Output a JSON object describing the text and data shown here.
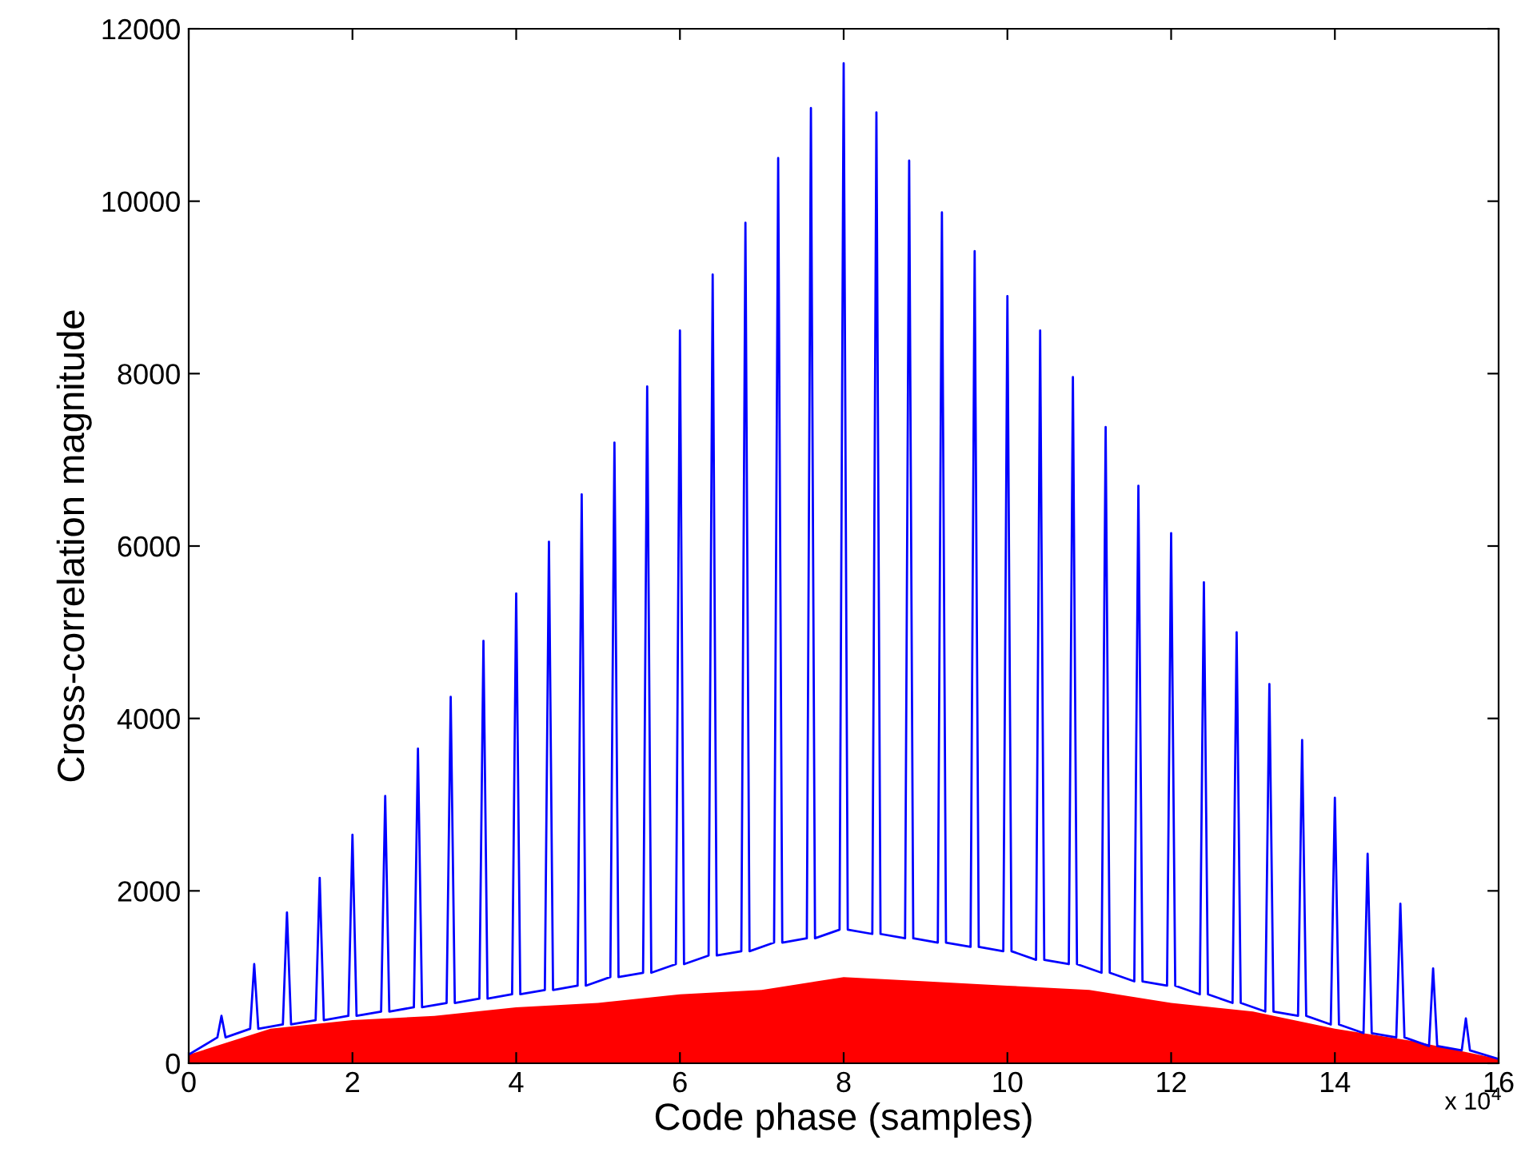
{
  "chart_data": {
    "type": "line",
    "xlabel": "Code phase (samples)",
    "ylabel": "Cross-correlation magnitude",
    "annotations": [
      "x 10$^{4}$"
    ],
    "xlim": [
      0,
      16
    ],
    "ylim": [
      0,
      12000
    ],
    "xticks": [
      0,
      2,
      4,
      6,
      8,
      10,
      12,
      14,
      16
    ],
    "yticks": [
      0,
      2000,
      4000,
      6000,
      8000,
      10000,
      12000
    ],
    "grid": false,
    "legend": false,
    "series": [
      {
        "color": "#0000ff",
        "x": [
          0,
          0.35,
          0.4,
          0.45,
          0.75,
          0.8,
          0.85,
          1.15,
          1.2,
          1.25,
          1.55,
          1.6,
          1.65,
          1.95,
          2.0,
          2.05,
          2.35,
          2.4,
          2.45,
          2.75,
          2.8,
          2.85,
          3.15,
          3.2,
          3.25,
          3.55,
          3.6,
          3.65,
          3.95,
          4.0,
          4.05,
          4.35,
          4.4,
          4.45,
          4.75,
          4.8,
          4.85,
          5.15,
          5.2,
          5.25,
          5.55,
          5.6,
          5.65,
          5.95,
          6.0,
          6.05,
          6.35,
          6.4,
          6.45,
          6.75,
          6.8,
          6.85,
          7.15,
          7.2,
          7.25,
          7.55,
          7.6,
          7.65,
          7.95,
          8.0,
          8.05,
          8.35,
          8.4,
          8.45,
          8.75,
          8.8,
          8.85,
          9.15,
          9.2,
          9.25,
          9.55,
          9.6,
          9.65,
          9.95,
          10.0,
          10.05,
          10.35,
          10.4,
          10.45,
          10.75,
          10.8,
          10.85,
          11.15,
          11.2,
          11.25,
          11.55,
          11.6,
          11.65,
          11.95,
          12.0,
          12.05,
          12.35,
          12.4,
          12.45,
          12.75,
          12.8,
          12.85,
          13.15,
          13.2,
          13.25,
          13.55,
          13.6,
          13.65,
          13.95,
          14.0,
          14.05,
          14.35,
          14.4,
          14.45,
          14.75,
          14.8,
          14.85,
          15.15,
          15.2,
          15.25,
          15.55,
          15.6,
          15.65,
          16
        ],
        "values": [
          100,
          300,
          550,
          300,
          400,
          1150,
          400,
          450,
          1750,
          450,
          500,
          2150,
          500,
          550,
          2650,
          550,
          600,
          3100,
          600,
          650,
          3650,
          650,
          700,
          4250,
          700,
          750,
          4900,
          750,
          800,
          5450,
          800,
          850,
          6050,
          850,
          900,
          6600,
          900,
          1000,
          7200,
          1000,
          1050,
          7850,
          1050,
          1150,
          8500,
          1150,
          1250,
          9150,
          1250,
          1300,
          9750,
          1300,
          1400,
          10500,
          1400,
          1450,
          11080,
          1450,
          1550,
          11600,
          1550,
          1500,
          11030,
          1500,
          1450,
          10470,
          1450,
          1400,
          9870,
          1400,
          1350,
          9420,
          1350,
          1300,
          8900,
          1300,
          1200,
          8500,
          1200,
          1150,
          7960,
          1150,
          1050,
          7380,
          1050,
          950,
          6700,
          950,
          900,
          6150,
          900,
          800,
          5580,
          800,
          700,
          5000,
          700,
          600,
          4400,
          600,
          550,
          3750,
          550,
          450,
          3080,
          450,
          350,
          2430,
          350,
          300,
          1850,
          300,
          200,
          1100,
          200,
          150,
          520,
          150,
          50
        ]
      },
      {
        "type": "area",
        "color": "#ff0000",
        "x": [
          0,
          1,
          2,
          3,
          4,
          5,
          6,
          7,
          8,
          9,
          10,
          11,
          12,
          13,
          14,
          15,
          16
        ],
        "values": [
          100,
          400,
          500,
          550,
          650,
          700,
          800,
          850,
          1000,
          950,
          900,
          850,
          700,
          600,
          400,
          250,
          50
        ]
      }
    ]
  }
}
